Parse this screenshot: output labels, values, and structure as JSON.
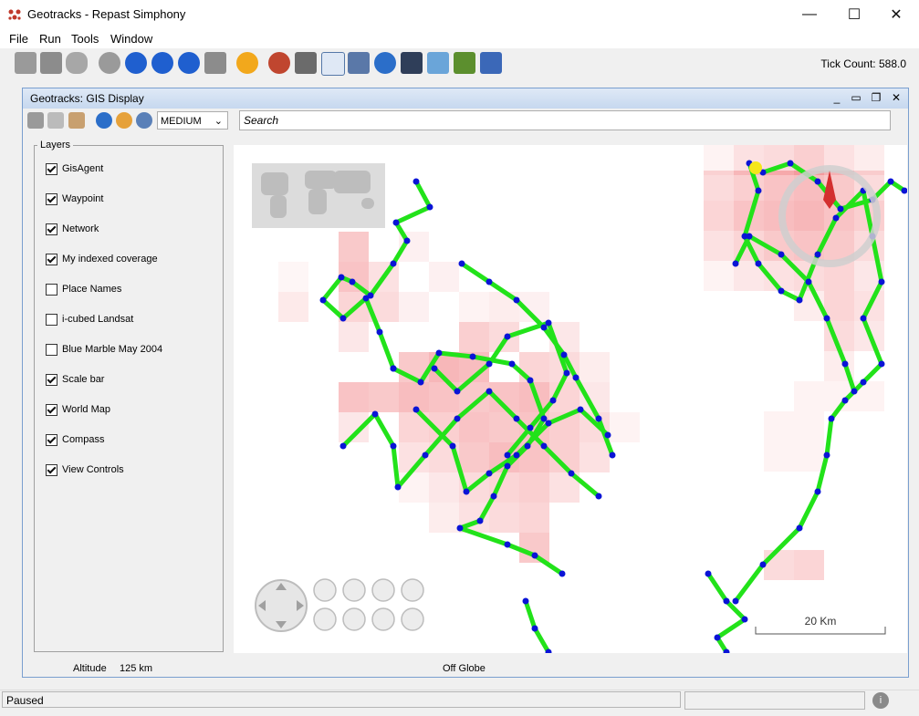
{
  "window": {
    "title": "Geotracks - Repast Simphony",
    "minimize": "—",
    "maximize": "☐",
    "close": "✕"
  },
  "menu": [
    "File",
    "Run",
    "Tools",
    "Window"
  ],
  "toolbar": {
    "icons": [
      "user-icon",
      "save-icon",
      "database-icon",
      "power-icon",
      "play-icon",
      "fast-forward-icon",
      "stop-icon",
      "reset-icon",
      "lightning-icon",
      "chart-icon",
      "settings-icon",
      "grid-icon",
      "calculator-icon",
      "globe-icon",
      "display-icon",
      "zoom-icon",
      "map-icon",
      "network-icon"
    ],
    "tick_count": "Tick Count: 588.0"
  },
  "gis": {
    "title": "Geotracks: GIS Display",
    "controls": {
      "min": "_",
      "restore": "▭",
      "max": "❐",
      "close": "✕"
    },
    "detail_level": "MEDIUM",
    "search_placeholder": "Search",
    "layers_title": "Layers",
    "layers": [
      {
        "label": "GisAgent",
        "checked": true
      },
      {
        "label": "Waypoint",
        "checked": true
      },
      {
        "label": "Network",
        "checked": true
      },
      {
        "label": "My indexed coverage",
        "checked": true
      },
      {
        "label": "Place Names",
        "checked": false
      },
      {
        "label": "i-cubed Landsat",
        "checked": false
      },
      {
        "label": "Blue Marble May 2004",
        "checked": false
      },
      {
        "label": "Scale bar",
        "checked": true
      },
      {
        "label": "World Map",
        "checked": true
      },
      {
        "label": "Compass",
        "checked": true
      },
      {
        "label": "View Controls",
        "checked": true
      }
    ],
    "scale": "20 Km",
    "altitude_label": "Altitude",
    "altitude_value": "125 km",
    "globe_status": "Off Globe"
  },
  "status": {
    "text": "Paused"
  },
  "colors": {
    "track": "#22e21a",
    "node": "#0a14d6",
    "coverage": "#e8242a",
    "agent": "#f5e61a"
  }
}
